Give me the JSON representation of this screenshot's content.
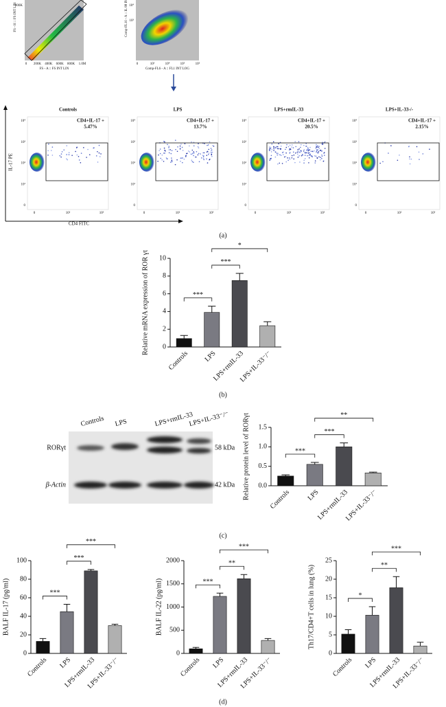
{
  "flow_top": [
    {
      "x_label": "FS - A :: FS INT LIN",
      "y_label": "FS - H :: FS INT LIN",
      "xticks": [
        "0",
        "200K",
        "400K",
        "600K",
        "800K",
        "1.0M"
      ],
      "yticks": [
        "900K"
      ]
    },
    {
      "x_label": "Comp-FL6 - A :: FL1 INT LOG",
      "y_label": "Comp-FL10 - A :: IL 88 INT",
      "xticks": [
        "0",
        "10³",
        "10⁴",
        "10⁵",
        "10⁶"
      ],
      "yticks": [
        "10⁴",
        "10³"
      ]
    }
  ],
  "flow": {
    "y_label": "IL-17 PE",
    "x_label": "CD4 FITC",
    "yticks": [
      "10⁴",
      "10³",
      "10²",
      "10¹",
      "0"
    ],
    "xticks": [
      "0",
      "10²",
      "10³"
    ],
    "panels": [
      {
        "title": "Controls",
        "gate": "CD4+IL-17 +",
        "percent": "5.47%"
      },
      {
        "title": "LPS",
        "gate": "CD4+IL-17 +",
        "percent": "13.7%"
      },
      {
        "title": "LPS+rmIL-33",
        "gate": "CD4+IL-17 +",
        "percent": "20.5%"
      },
      {
        "title": "LPS+IL-33-/-",
        "gate": "CD4+IL-17 +",
        "percent": "2.15%"
      }
    ]
  },
  "panel_labels": [
    "(a)",
    "(b)",
    "(c)",
    "(d)"
  ],
  "blot": {
    "lanes": [
      "Controls",
      "LPS",
      "LPS+rmIL-33",
      "LPS+IL-33⁻/⁻"
    ],
    "rows": [
      {
        "label": "RORγt",
        "size": "58 kDa"
      },
      {
        "label": "β-Actin",
        "size": "42 kDa"
      }
    ]
  },
  "chart_data": [
    {
      "type": "bar",
      "y_label": "Relative mRNA expression of ROR γt",
      "categories": [
        "Controls",
        "LPS",
        "LPS+rmIL-33",
        "LPS+IL-33⁻/⁻"
      ],
      "values": [
        0.95,
        3.9,
        7.5,
        2.4
      ],
      "errors": [
        0.35,
        0.7,
        0.8,
        0.45
      ],
      "colors": [
        "#111111",
        "#7a7a82",
        "#4a4a4f",
        "#b0b0b0"
      ],
      "ylim": [
        0,
        10
      ],
      "yticks": [
        0,
        2,
        4,
        6,
        8,
        10
      ],
      "annotations": [
        {
          "text": "***",
          "between": [
            "Controls",
            "LPS"
          ]
        },
        {
          "text": "***",
          "between": [
            "LPS",
            "LPS+rmIL-33"
          ]
        },
        {
          "text": "*",
          "between": [
            "LPS",
            "LPS+IL-33⁻/⁻"
          ]
        }
      ]
    },
    {
      "type": "bar",
      "y_label": "Relative protein level of RORγt",
      "categories": [
        "Controls",
        "LPS",
        "LPS+rmIL-33",
        "LPS+IL-33⁻/⁻"
      ],
      "values": [
        0.25,
        0.55,
        1.0,
        0.33
      ],
      "errors": [
        0.03,
        0.05,
        0.1,
        0.02
      ],
      "colors": [
        "#111111",
        "#7a7a82",
        "#4a4a4f",
        "#b0b0b0"
      ],
      "ylim": [
        0,
        1.5
      ],
      "yticks": [
        {
          "value": 0,
          "label": "0.0"
        },
        {
          "value": 0.5,
          "label": "0.5"
        },
        {
          "value": 1,
          "label": "1.0"
        },
        {
          "value": 1.5,
          "label": "1.5"
        }
      ],
      "annotations": [
        {
          "text": "***",
          "between": [
            "Controls",
            "LPS"
          ]
        },
        {
          "text": "***",
          "between": [
            "LPS",
            "LPS+rmIL-33"
          ]
        },
        {
          "text": "**",
          "between": [
            "LPS",
            "LPS+IL-33⁻/⁻"
          ]
        }
      ]
    },
    {
      "type": "bar",
      "y_label": "BALF IL-17 (pg/ml)",
      "categories": [
        "Controls",
        "LPS",
        "LPS+rmIL-33",
        "LPS+IL-33⁻/⁻"
      ],
      "values": [
        13,
        45,
        89,
        30
      ],
      "errors": [
        3,
        8,
        1.5,
        1.5
      ],
      "colors": [
        "#111111",
        "#7a7a82",
        "#4a4a4f",
        "#b0b0b0"
      ],
      "ylim": [
        0,
        100
      ],
      "yticks": [
        0,
        20,
        40,
        60,
        80,
        100
      ],
      "annotations": [
        {
          "text": "***",
          "between": [
            "Controls",
            "LPS"
          ]
        },
        {
          "text": "***",
          "between": [
            "LPS",
            "LPS+rmIL-33"
          ]
        },
        {
          "text": "***",
          "between": [
            "LPS",
            "LPS+IL-33⁻/⁻"
          ]
        }
      ]
    },
    {
      "type": "bar",
      "y_label": "BALF IL-22 (pg/ml)",
      "categories": [
        "Controls",
        "LPS",
        "LPS+rmIL-33",
        "LPS+IL-33⁻/⁻"
      ],
      "values": [
        100,
        1230,
        1610,
        280
      ],
      "errors": [
        30,
        70,
        90,
        40
      ],
      "colors": [
        "#111111",
        "#7a7a82",
        "#4a4a4f",
        "#b0b0b0"
      ],
      "ylim": [
        0,
        2000
      ],
      "yticks": [
        0,
        500,
        1000,
        1500,
        2000
      ],
      "annotations": [
        {
          "text": "***",
          "between": [
            "Controls",
            "LPS"
          ]
        },
        {
          "text": "**",
          "between": [
            "LPS",
            "LPS+rmIL-33"
          ]
        },
        {
          "text": "***",
          "between": [
            "LPS",
            "LPS+IL-33⁻/⁻"
          ]
        }
      ]
    },
    {
      "type": "bar",
      "y_label": "Th17/CD4+T cells in lung (%)",
      "categories": [
        "Controls",
        "LPS",
        "LPS+rmIL-33",
        "LPS+IL-33⁻/⁻"
      ],
      "values": [
        5.2,
        10.3,
        17.7,
        2.0
      ],
      "errors": [
        1.2,
        2.3,
        3,
        1
      ],
      "colors": [
        "#111111",
        "#7a7a82",
        "#4a4a4f",
        "#b0b0b0"
      ],
      "ylim": [
        0,
        25
      ],
      "yticks": [
        0,
        5,
        10,
        15,
        20,
        25
      ],
      "annotations": [
        {
          "text": "*",
          "between": [
            "Controls",
            "LPS"
          ]
        },
        {
          "text": "**",
          "between": [
            "LPS",
            "LPS+rmIL-33"
          ]
        },
        {
          "text": "***",
          "between": [
            "LPS",
            "LPS+IL-33⁻/⁻"
          ]
        }
      ]
    }
  ]
}
